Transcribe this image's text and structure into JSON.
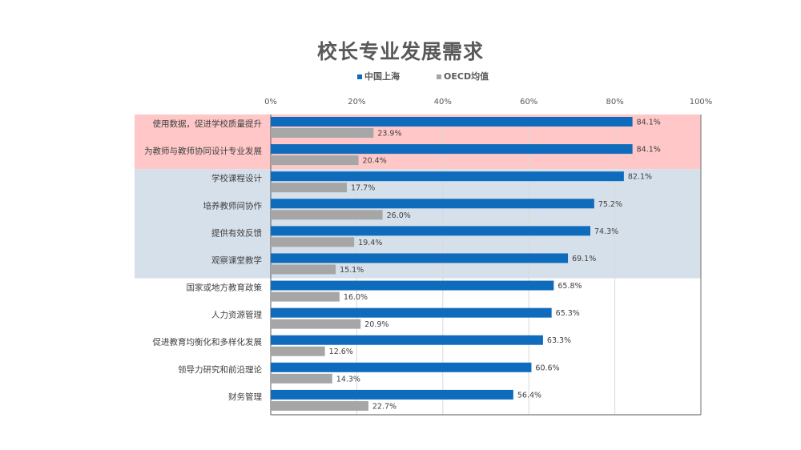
{
  "chart_data": {
    "type": "bar",
    "orientation": "horizontal",
    "title": "校长专业发展需求",
    "categories": [
      "使用数据，促进学校质量提升",
      "为教师与教师协同设计专业发展",
      "学校课程设计",
      "培养教师间协作",
      "提供有效反馈",
      "观察课堂教学",
      "国家或地方教育政策",
      "人力资源管理",
      "促进教育均衡化和多样化发展",
      "领导力研究和前沿理论",
      "财务管理"
    ],
    "series": [
      {
        "name": "中国上海",
        "color": "#0f6cbd",
        "values": [
          84.1,
          84.1,
          82.1,
          75.2,
          74.3,
          69.1,
          65.8,
          65.3,
          63.3,
          60.6,
          56.4
        ],
        "labels": [
          "84.1%",
          "84.1%",
          "82.1%",
          "75.2%",
          "74.3%",
          "69.1%",
          "65.8%",
          "65.3%",
          "63.3%",
          "60.6%",
          "56.4%"
        ]
      },
      {
        "name": "OECD均值",
        "color": "#a6a6a6",
        "values": [
          23.9,
          20.4,
          17.7,
          26.0,
          19.4,
          15.1,
          16.0,
          20.9,
          12.6,
          14.3,
          22.7
        ],
        "labels": [
          "23.9%",
          "20.4%",
          "17.7%",
          "26.0%",
          "19.4%",
          "15.1%",
          "16.0%",
          "20.9%",
          "12.6%",
          "14.3%",
          "22.7%"
        ]
      }
    ],
    "xlim": [
      0,
      100
    ],
    "x_ticks": [
      "0%",
      "20%",
      "40%",
      "60%",
      "80%",
      "100%"
    ],
    "legend_position": "top",
    "grid": true,
    "highlight_bands": [
      {
        "from_category": 0,
        "to_category": 1,
        "color": "#ffc7c7"
      },
      {
        "from_category": 2,
        "to_category": 5,
        "color": "#d6e0ea"
      }
    ]
  }
}
